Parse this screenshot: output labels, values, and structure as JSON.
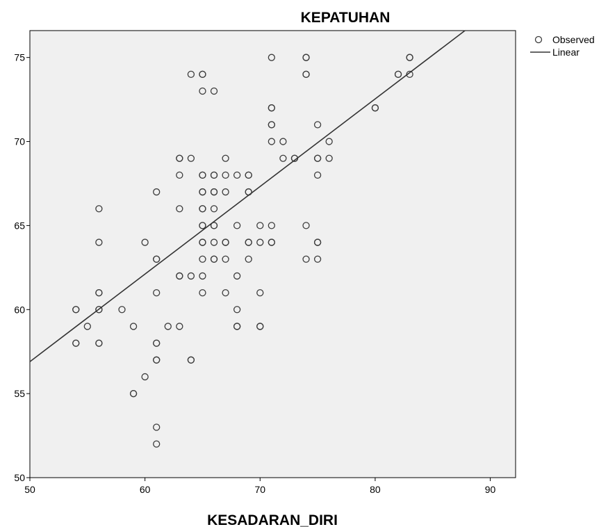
{
  "chart_data": {
    "type": "scatter",
    "title": "KEPATUHAN",
    "xlabel": "KESADARAN_DIRI",
    "ylabel": "",
    "xlim": [
      50,
      92.2
    ],
    "ylim": [
      50,
      76.6
    ],
    "xticks": [
      "50",
      "60",
      "70",
      "80",
      "90"
    ],
    "yticks": [
      "50",
      "55",
      "60",
      "65",
      "70",
      "75"
    ],
    "grid": false,
    "legend_position": "top-right",
    "colors": {
      "plot_background": "#f0f0f0",
      "markers": "#3c3c3c",
      "line": "#333333"
    },
    "series": [
      {
        "name": "Observed",
        "kind": "scatter",
        "points": [
          [
            54,
            60
          ],
          [
            54,
            60
          ],
          [
            54,
            58
          ],
          [
            54,
            58
          ],
          [
            55,
            59
          ],
          [
            56,
            66
          ],
          [
            56,
            64
          ],
          [
            56,
            61
          ],
          [
            56,
            61
          ],
          [
            56,
            60
          ],
          [
            56,
            60
          ],
          [
            56,
            58
          ],
          [
            56,
            58
          ],
          [
            58,
            60
          ],
          [
            59,
            59
          ],
          [
            59,
            55
          ],
          [
            59,
            55
          ],
          [
            60,
            64
          ],
          [
            60,
            56
          ],
          [
            61,
            67
          ],
          [
            61,
            63
          ],
          [
            61,
            63
          ],
          [
            61,
            61
          ],
          [
            61,
            58
          ],
          [
            61,
            58
          ],
          [
            61,
            57
          ],
          [
            61,
            57
          ],
          [
            61,
            53
          ],
          [
            61,
            52
          ],
          [
            62,
            59
          ],
          [
            63,
            69
          ],
          [
            63,
            69
          ],
          [
            63,
            68
          ],
          [
            63,
            66
          ],
          [
            63,
            62
          ],
          [
            63,
            62
          ],
          [
            63,
            59
          ],
          [
            64,
            74
          ],
          [
            64,
            69
          ],
          [
            64,
            62
          ],
          [
            64,
            57
          ],
          [
            64,
            57
          ],
          [
            65,
            74
          ],
          [
            65,
            74
          ],
          [
            65,
            73
          ],
          [
            65,
            68
          ],
          [
            65,
            68
          ],
          [
            65,
            67
          ],
          [
            65,
            67
          ],
          [
            65,
            66
          ],
          [
            65,
            66
          ],
          [
            65,
            65
          ],
          [
            65,
            65
          ],
          [
            65,
            64
          ],
          [
            65,
            64
          ],
          [
            65,
            63
          ],
          [
            65,
            62
          ],
          [
            65,
            61
          ],
          [
            66,
            73
          ],
          [
            66,
            68
          ],
          [
            66,
            68
          ],
          [
            66,
            67
          ],
          [
            66,
            67
          ],
          [
            66,
            66
          ],
          [
            66,
            65
          ],
          [
            66,
            65
          ],
          [
            66,
            64
          ],
          [
            66,
            63
          ],
          [
            66,
            63
          ],
          [
            67,
            69
          ],
          [
            67,
            68
          ],
          [
            67,
            67
          ],
          [
            67,
            64
          ],
          [
            67,
            64
          ],
          [
            67,
            63
          ],
          [
            67,
            61
          ],
          [
            68,
            68
          ],
          [
            68,
            65
          ],
          [
            68,
            62
          ],
          [
            68,
            60
          ],
          [
            68,
            59
          ],
          [
            68,
            59
          ],
          [
            69,
            68
          ],
          [
            69,
            68
          ],
          [
            69,
            67
          ],
          [
            69,
            67
          ],
          [
            69,
            64
          ],
          [
            69,
            64
          ],
          [
            69,
            63
          ],
          [
            70,
            65
          ],
          [
            70,
            64
          ],
          [
            70,
            61
          ],
          [
            70,
            59
          ],
          [
            70,
            59
          ],
          [
            71,
            75
          ],
          [
            71,
            72
          ],
          [
            71,
            72
          ],
          [
            71,
            71
          ],
          [
            71,
            71
          ],
          [
            71,
            70
          ],
          [
            71,
            65
          ],
          [
            71,
            64
          ],
          [
            71,
            64
          ],
          [
            72,
            70
          ],
          [
            72,
            69
          ],
          [
            73,
            69
          ],
          [
            73,
            69
          ],
          [
            74,
            75
          ],
          [
            74,
            75
          ],
          [
            74,
            74
          ],
          [
            74,
            74
          ],
          [
            74,
            65
          ],
          [
            74,
            63
          ],
          [
            75,
            71
          ],
          [
            75,
            69
          ],
          [
            75,
            69
          ],
          [
            75,
            68
          ],
          [
            75,
            64
          ],
          [
            75,
            64
          ],
          [
            75,
            63
          ],
          [
            76,
            70
          ],
          [
            76,
            69
          ],
          [
            80,
            72
          ],
          [
            80,
            72
          ],
          [
            82,
            74
          ],
          [
            82,
            74
          ],
          [
            83,
            75
          ],
          [
            83,
            75
          ],
          [
            83,
            74
          ]
        ]
      },
      {
        "name": "Linear",
        "kind": "line",
        "points": [
          [
            50,
            56.9
          ],
          [
            87.8,
            76.6
          ]
        ]
      }
    ]
  }
}
